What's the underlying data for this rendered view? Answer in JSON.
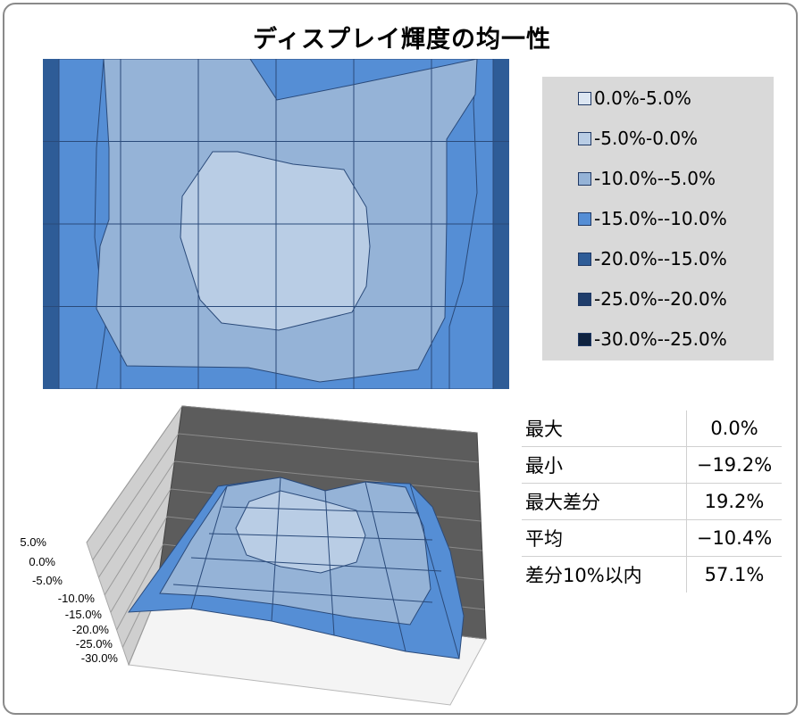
{
  "title": "ディスプレイ輝度の均一性",
  "colors": {
    "band_0": "#dce6f2",
    "band_1": "#b9cde5",
    "band_2": "#95b3d7",
    "band_3": "#558ed5",
    "band_4": "#2e5c97",
    "band_5": "#1f3d6b",
    "band_6": "#0f2340",
    "grid_line": "#2a4a7a",
    "frame": "#8a8a8a"
  },
  "chart_data": [
    {
      "type": "heatmap",
      "subtype": "contour",
      "columns": 6,
      "rows": 4,
      "legend_position": "right",
      "legend": [
        {
          "label": "0.0%-5.0%",
          "color": "#dce6f2"
        },
        {
          "label": "-5.0%-0.0%",
          "color": "#b9cde5"
        },
        {
          "label": "-10.0%--5.0%",
          "color": "#95b3d7"
        },
        {
          "label": "-15.0%--10.0%",
          "color": "#558ed5"
        },
        {
          "label": "-20.0%--15.0%",
          "color": "#2e5c97"
        },
        {
          "label": "-25.0%--20.0%",
          "color": "#1f3d6b"
        },
        {
          "label": "-30.0%--25.0%",
          "color": "#0f2340"
        }
      ]
    },
    {
      "type": "surface",
      "zlim": [
        -30,
        5
      ],
      "z_tick_labels": [
        "5.0%",
        "0.0%",
        "-5.0%",
        "-10.0%",
        "-15.0%",
        "-20.0%",
        "-25.0%",
        "-30.0%"
      ]
    }
  ],
  "stats": [
    {
      "label": "最大",
      "value": "0.0%"
    },
    {
      "label": "最小",
      "value": "−19.2%"
    },
    {
      "label": "最大差分",
      "value": "19.2%"
    },
    {
      "label": "平均",
      "value": "−10.4%"
    },
    {
      "label": "差分10%以内",
      "value": "57.1%"
    }
  ]
}
